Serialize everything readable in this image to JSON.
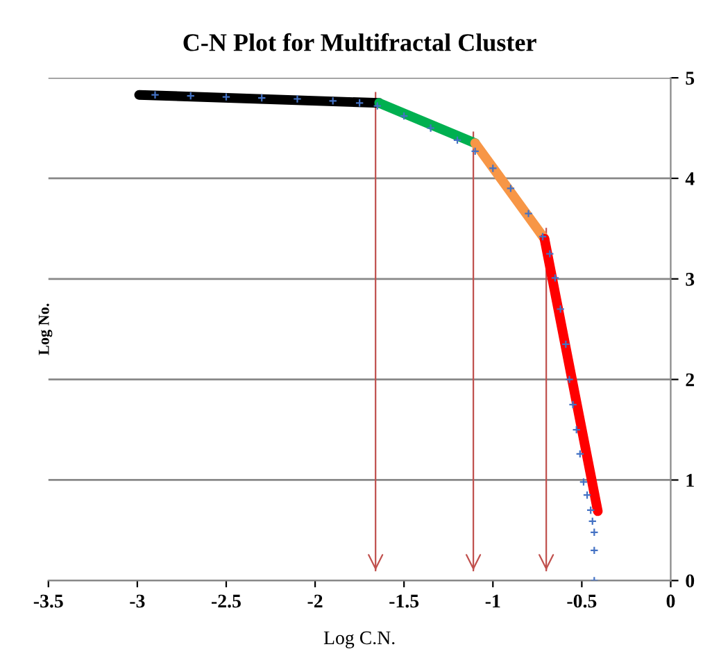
{
  "chart_data": {
    "type": "scatter",
    "title": "C-N Plot for Multifractal Cluster",
    "xlabel": "Log C.N.",
    "ylabel": "Log No.",
    "xlim": [
      -3.5,
      0
    ],
    "xticks": [
      -3.5,
      -3,
      -2.5,
      -2,
      -1.5,
      -1,
      -0.5,
      0
    ],
    "ylim": [
      0,
      5
    ],
    "yticks": [
      0,
      1,
      2,
      3,
      4,
      5
    ],
    "grid": "y",
    "series": [
      {
        "color": "#4472c4",
        "marker": "cross",
        "x": [
          -2.9,
          -2.7,
          -2.5,
          -2.3,
          -2.1,
          -1.9,
          -1.75,
          -1.65,
          -1.5,
          -1.35,
          -1.2,
          -1.1,
          -1.0,
          -0.9,
          -0.8,
          -0.72,
          -0.68,
          -0.65,
          -0.62,
          -0.59,
          -0.57,
          -0.55,
          -0.53,
          -0.51,
          -0.49,
          -0.47,
          -0.45,
          -0.44,
          -0.43,
          -0.43,
          -0.43
        ],
        "values": [
          4.83,
          4.82,
          4.81,
          4.8,
          4.79,
          4.77,
          4.75,
          4.72,
          4.62,
          4.5,
          4.38,
          4.27,
          4.1,
          3.9,
          3.65,
          3.42,
          3.25,
          3.01,
          2.7,
          2.35,
          2.0,
          1.75,
          1.5,
          1.26,
          0.98,
          0.85,
          0.7,
          0.59,
          0.48,
          0.3,
          0.0
        ]
      },
      {
        "type": "line",
        "color": "#000000",
        "x": [
          -2.99,
          -1.64
        ],
        "values": [
          4.83,
          4.75
        ]
      },
      {
        "type": "line",
        "color": "#00b050",
        "x": [
          -1.64,
          -1.1
        ],
        "values": [
          4.75,
          4.35
        ]
      },
      {
        "type": "line",
        "color": "#f79646",
        "x": [
          -1.1,
          -0.71
        ],
        "values": [
          4.35,
          3.4
        ]
      },
      {
        "type": "line",
        "color": "#ff0000",
        "x": [
          -0.71,
          -0.41
        ],
        "values": [
          3.4,
          0.69
        ]
      }
    ],
    "ref_lines": [
      {
        "axis": "x",
        "value": -1.66,
        "color": "#c0504d"
      },
      {
        "axis": "x",
        "value": -1.11,
        "color": "#c0504d"
      },
      {
        "axis": "x",
        "value": -0.7,
        "color": "#c0504d"
      }
    ]
  }
}
